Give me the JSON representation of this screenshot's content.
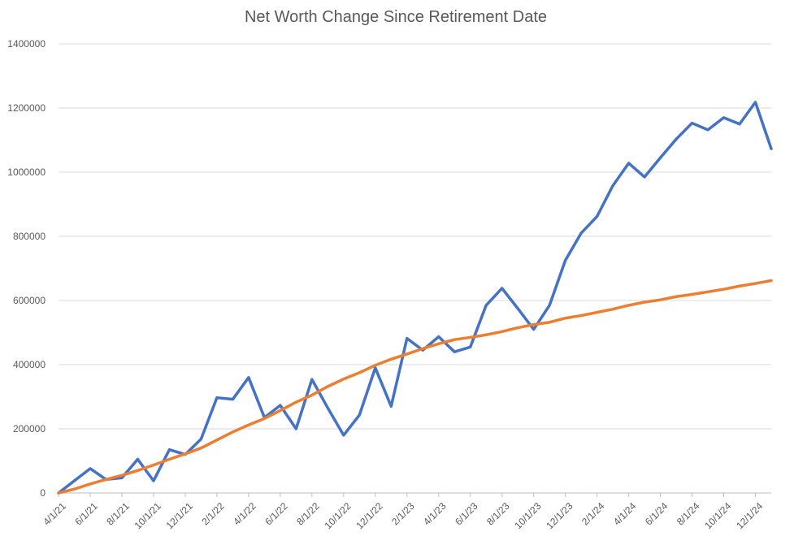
{
  "chart_data": {
    "type": "line",
    "title": "Net Worth Change Since Retirement Date",
    "xlabel": "",
    "ylabel": "",
    "ylim": [
      0,
      1400000
    ],
    "yticks": [
      0,
      200000,
      400000,
      600000,
      800000,
      1000000,
      1200000,
      1400000
    ],
    "grid": true,
    "legend": "none",
    "xtick_labels": [
      "4/1/21",
      "6/1/21",
      "8/1/21",
      "10/1/21",
      "12/1/21",
      "2/1/22",
      "4/1/22",
      "6/1/22",
      "8/1/22",
      "10/1/22",
      "12/1/22",
      "2/1/23",
      "4/1/23",
      "6/1/23",
      "8/1/23",
      "10/1/23",
      "12/1/23",
      "2/1/24",
      "4/1/24",
      "6/1/24",
      "8/1/24",
      "10/1/24",
      "12/1/24"
    ],
    "x": [
      "4/1/21",
      "5/1/21",
      "6/1/21",
      "7/1/21",
      "8/1/21",
      "9/1/21",
      "10/1/21",
      "11/1/21",
      "12/1/21",
      "1/1/22",
      "2/1/22",
      "3/1/22",
      "4/1/22",
      "5/1/22",
      "6/1/22",
      "7/1/22",
      "8/1/22",
      "9/1/22",
      "10/1/22",
      "11/1/22",
      "12/1/22",
      "1/1/23",
      "2/1/23",
      "3/1/23",
      "4/1/23",
      "5/1/23",
      "6/1/23",
      "7/1/23",
      "8/1/23",
      "9/1/23",
      "10/1/23",
      "11/1/23",
      "12/1/23",
      "1/1/24",
      "2/1/24",
      "3/1/24",
      "4/1/24",
      "5/1/24",
      "6/1/24",
      "7/1/24",
      "8/1/24",
      "9/1/24",
      "10/1/24",
      "11/1/24",
      "12/1/24",
      "1/1/25"
    ],
    "series": [
      {
        "color": "#4472C4",
        "values": [
          0,
          38000,
          76000,
          42000,
          47000,
          105000,
          38000,
          135000,
          120000,
          168000,
          297000,
          292000,
          360000,
          235000,
          273000,
          200000,
          354000,
          265000,
          180000,
          243000,
          390000,
          270000,
          482000,
          445000,
          487000,
          440000,
          455000,
          585000,
          638000,
          575000,
          510000,
          585000,
          725000,
          810000,
          862000,
          958000,
          1028000,
          985000,
          1045000,
          1103000,
          1153000,
          1132000,
          1170000,
          1150000,
          1218000,
          1073000
        ]
      },
      {
        "color": "#ED7D31",
        "values": [
          0,
          12000,
          28000,
          42000,
          55000,
          70000,
          87000,
          105000,
          122000,
          140000,
          165000,
          190000,
          212000,
          232000,
          257000,
          283000,
          305000,
          332000,
          355000,
          375000,
          398000,
          417000,
          433000,
          450000,
          465000,
          478000,
          485000,
          493000,
          503000,
          515000,
          525000,
          532000,
          545000,
          553000,
          563000,
          573000,
          585000,
          595000,
          602000,
          612000,
          619000,
          627000,
          635000,
          645000,
          653000,
          662000
        ]
      }
    ]
  }
}
